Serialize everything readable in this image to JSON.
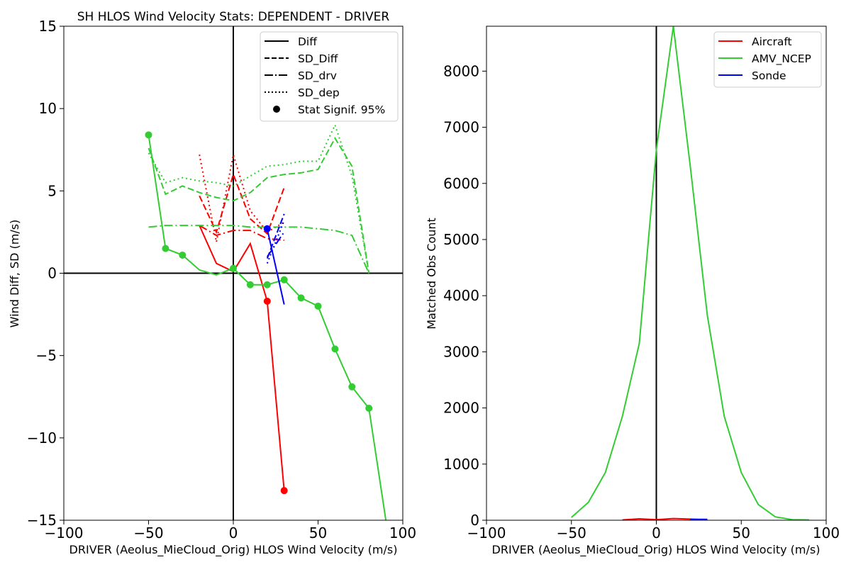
{
  "colors": {
    "Aircraft": "#ff0000",
    "AMV_NCEP": "#33cc33",
    "Sonde": "#0000ff",
    "axes": "#000000"
  },
  "chart_data": [
    {
      "type": "line",
      "title": "SH HLOS Wind Velocity Stats: DEPENDENT - DRIVER",
      "xlabel": "DRIVER (Aeolus_MieCloud_Orig) HLOS Wind Velocity (m/s)",
      "ylabel": "Wind Diff, SD (m/s)",
      "xlim": [
        -100,
        100
      ],
      "ylim": [
        -15,
        15
      ],
      "xticks": [
        -100,
        -50,
        0,
        50,
        100
      ],
      "yticks": [
        -15,
        -10,
        -5,
        0,
        5,
        10,
        15
      ],
      "xtick_labels": [
        "−100",
        "−50",
        "0",
        "50",
        "100"
      ],
      "ytick_labels": [
        "−15",
        "−10",
        "−5",
        "0",
        "5",
        "10",
        "15"
      ],
      "grid": false,
      "legend_position": "top-right",
      "legend": [
        {
          "label": "Diff",
          "style": "solid"
        },
        {
          "label": "SD_Diff",
          "style": "dashed"
        },
        {
          "label": "SD_drv",
          "style": "dashdot"
        },
        {
          "label": "SD_dep",
          "style": "dotted"
        },
        {
          "label": "Stat Signif. 95%",
          "style": "marker"
        }
      ],
      "series": [
        {
          "name": "Aircraft",
          "x": [
            -20,
            -10,
            0,
            10,
            20,
            30
          ],
          "diff": [
            2.9,
            0.6,
            0.1,
            1.8,
            -1.7,
            -13.2
          ],
          "sd_diff": [
            4.7,
            2.5,
            6.0,
            3.3,
            2.4,
            5.2
          ],
          "sd_drv": [
            2.9,
            2.3,
            2.6,
            2.6,
            2.1,
            2.0
          ],
          "sd_dep": [
            7.2,
            1.9,
            7.2,
            3.8,
            2.5,
            3.1
          ],
          "signif": [
            false,
            false,
            false,
            false,
            true,
            true
          ]
        },
        {
          "name": "AMV_NCEP",
          "x": [
            -50,
            -40,
            -30,
            -20,
            -10,
            0,
            10,
            20,
            30,
            40,
            50,
            60,
            70,
            80,
            90
          ],
          "diff": [
            8.4,
            1.5,
            1.1,
            0.2,
            -0.1,
            0.3,
            -0.7,
            -0.7,
            -0.4,
            -1.5,
            -2.0,
            -4.6,
            -6.9,
            -8.2,
            -15
          ],
          "sd_diff": [
            7.6,
            4.8,
            5.3,
            4.9,
            4.6,
            4.4,
            4.9,
            5.8,
            6.0,
            6.1,
            6.3,
            8.2,
            6.5,
            0.0,
            null
          ],
          "sd_drv": [
            2.8,
            2.9,
            2.9,
            2.9,
            2.9,
            2.9,
            2.8,
            2.8,
            2.8,
            2.8,
            2.7,
            2.6,
            2.3,
            0.0,
            null
          ],
          "sd_dep": [
            7.3,
            5.5,
            5.8,
            5.6,
            5.5,
            5.3,
            5.9,
            6.5,
            6.6,
            6.8,
            6.8,
            9.0,
            5.9,
            0.0,
            null
          ],
          "signif": [
            true,
            true,
            true,
            false,
            false,
            true,
            true,
            true,
            true,
            true,
            true,
            true,
            true,
            true,
            false
          ]
        },
        {
          "name": "Sonde",
          "x": [
            20,
            30
          ],
          "diff": [
            2.7,
            -1.9
          ],
          "sd_diff": [
            0.9,
            3.6
          ],
          "sd_drv": [
            1.0,
            2.5
          ],
          "sd_dep": [
            0.6,
            3.2
          ],
          "signif": [
            true,
            false
          ]
        }
      ]
    },
    {
      "type": "line",
      "title": "",
      "xlabel": "DRIVER (Aeolus_MieCloud_Orig) HLOS Wind Velocity (m/s)",
      "ylabel": "Matched Obs Count",
      "xlim": [
        -100,
        100
      ],
      "ylim": [
        0,
        8800
      ],
      "xticks": [
        -100,
        -50,
        0,
        50,
        100
      ],
      "yticks": [
        0,
        1000,
        2000,
        3000,
        4000,
        5000,
        6000,
        7000,
        8000
      ],
      "xtick_labels": [
        "−100",
        "−50",
        "0",
        "50",
        "100"
      ],
      "ytick_labels": [
        "0",
        "1000",
        "2000",
        "3000",
        "4000",
        "5000",
        "6000",
        "7000",
        "8000"
      ],
      "grid": false,
      "legend_position": "top-right",
      "series": [
        {
          "name": "Aircraft",
          "x": [
            -20,
            -10,
            0,
            10,
            20,
            30
          ],
          "values": [
            5,
            25,
            10,
            30,
            20,
            5
          ]
        },
        {
          "name": "AMV_NCEP",
          "x": [
            -50,
            -40,
            -30,
            -20,
            -10,
            0,
            10,
            20,
            30,
            40,
            50,
            60,
            70,
            80,
            90
          ],
          "values": [
            50,
            320,
            850,
            1850,
            3150,
            6600,
            8800,
            6300,
            3650,
            1850,
            850,
            280,
            60,
            10,
            5
          ]
        },
        {
          "name": "Sonde",
          "x": [
            20,
            30
          ],
          "values": [
            15,
            15
          ]
        }
      ]
    }
  ]
}
